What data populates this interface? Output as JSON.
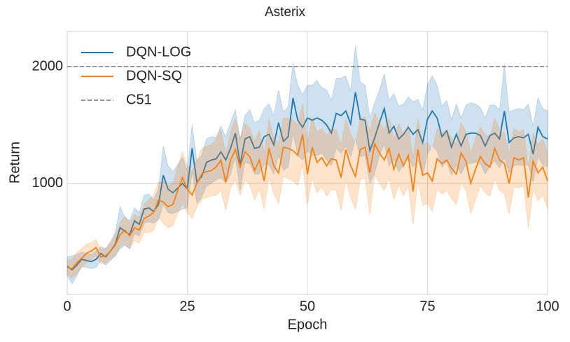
{
  "chart_data": {
    "type": "line",
    "title": "Asterix",
    "x_label": "Epoch",
    "y_label": "Return",
    "x": [
      0,
      1,
      2,
      3,
      4,
      5,
      6,
      7,
      8,
      9,
      10,
      11,
      12,
      13,
      14,
      15,
      16,
      17,
      18,
      19,
      20,
      21,
      22,
      23,
      24,
      25,
      26,
      27,
      28,
      29,
      30,
      31,
      32,
      33,
      34,
      35,
      36,
      37,
      38,
      39,
      40,
      41,
      42,
      43,
      44,
      45,
      46,
      47,
      48,
      49,
      50,
      51,
      52,
      53,
      54,
      55,
      56,
      57,
      58,
      59,
      60,
      61,
      62,
      63,
      64,
      65,
      66,
      67,
      68,
      69,
      70,
      71,
      72,
      73,
      74,
      75,
      76,
      77,
      78,
      79,
      80,
      81,
      82,
      83,
      84,
      85,
      86,
      87,
      88,
      89,
      90,
      91,
      92,
      93,
      94,
      95,
      96,
      97,
      98,
      99,
      100
    ],
    "series": [
      {
        "name": "DQN-LOG",
        "color": "#1f77b4",
        "values": [
          290,
          260,
          300,
          350,
          340,
          330,
          350,
          400,
          370,
          420,
          480,
          620,
          590,
          560,
          680,
          650,
          780,
          790,
          760,
          820,
          1070,
          950,
          920,
          960,
          1000,
          950,
          1300,
          1010,
          1060,
          1180,
          1200,
          1210,
          1270,
          1200,
          1300,
          1430,
          1160,
          1380,
          1400,
          1300,
          1310,
          1400,
          1420,
          1330,
          1520,
          1360,
          1400,
          1730,
          1540,
          1480,
          1560,
          1540,
          1560,
          1540,
          1500,
          1430,
          1600,
          1580,
          1620,
          1510,
          1780,
          1550,
          1540,
          1280,
          1390,
          1520,
          1640,
          1430,
          1490,
          1380,
          1420,
          1480,
          1420,
          1460,
          1350,
          1550,
          1620,
          1560,
          1400,
          1450,
          1310,
          1420,
          1320,
          1420,
          1430,
          1430,
          1410,
          1320,
          1410,
          1430,
          1380,
          1620,
          1350,
          1390,
          1400,
          1390,
          1420,
          1250,
          1480,
          1400,
          1380
        ],
        "std": [
          80,
          120,
          90,
          60,
          60,
          60,
          70,
          60,
          70,
          80,
          100,
          180,
          120,
          120,
          110,
          100,
          120,
          120,
          100,
          130,
          250,
          200,
          180,
          200,
          220,
          160,
          200,
          180,
          180,
          200,
          200,
          180,
          220,
          200,
          220,
          200,
          220,
          200,
          230,
          220,
          230,
          240,
          260,
          250,
          280,
          250,
          260,
          300,
          300,
          280,
          280,
          300,
          320,
          280,
          300,
          280,
          300,
          320,
          300,
          280,
          400,
          320,
          300,
          280,
          300,
          280,
          300,
          280,
          280,
          280,
          260,
          260,
          280,
          260,
          280,
          300,
          300,
          280,
          260,
          260,
          240,
          260,
          240,
          250,
          260,
          250,
          240,
          240,
          260,
          240,
          250,
          400,
          260,
          240,
          240,
          240,
          260,
          240,
          250,
          240,
          240
        ]
      },
      {
        "name": "DQN-SQ",
        "color": "#ff7f0e",
        "values": [
          280,
          270,
          320,
          360,
          400,
          420,
          450,
          370,
          380,
          420,
          470,
          560,
          600,
          550,
          620,
          600,
          700,
          720,
          750,
          860,
          840,
          800,
          820,
          940,
          1050,
          950,
          900,
          1000,
          1080,
          1100,
          1110,
          1140,
          1200,
          1010,
          1200,
          1290,
          1140,
          1270,
          1230,
          1110,
          1200,
          1020,
          1300,
          1150,
          1090,
          1310,
          1300,
          1280,
          1240,
          1420,
          1080,
          1310,
          1180,
          1220,
          1150,
          1210,
          1200,
          1050,
          1290,
          1150,
          1060,
          1290,
          1310,
          1090,
          1340,
          1260,
          1200,
          1300,
          1120,
          1250,
          1150,
          1240,
          930,
          1290,
          1070,
          1090,
          1020,
          1210,
          1170,
          1200,
          1130,
          1080,
          1260,
          1190,
          1000,
          1120,
          1230,
          1170,
          1140,
          1300,
          1200,
          1170,
          1000,
          1220,
          1200,
          1220,
          880,
          1190,
          1090,
          1140,
          1020
        ],
        "std": [
          60,
          80,
          90,
          80,
          80,
          70,
          70,
          60,
          60,
          70,
          90,
          100,
          120,
          110,
          110,
          110,
          120,
          140,
          150,
          150,
          180,
          180,
          180,
          200,
          220,
          200,
          200,
          200,
          220,
          220,
          220,
          240,
          260,
          240,
          240,
          260,
          240,
          240,
          240,
          250,
          250,
          240,
          250,
          240,
          260,
          250,
          260,
          260,
          260,
          260,
          260,
          260,
          260,
          250,
          260,
          260,
          260,
          280,
          260,
          270,
          280,
          260,
          260,
          360,
          260,
          260,
          260,
          260,
          260,
          260,
          260,
          260,
          280,
          260,
          260,
          260,
          260,
          260,
          260,
          260,
          260,
          260,
          260,
          250,
          260,
          260,
          250,
          250,
          250,
          260,
          260,
          260,
          260,
          250,
          240,
          240,
          260,
          240,
          240,
          240,
          240
        ]
      },
      {
        "name": "C51",
        "color": "#777777",
        "linestyle": "dashed",
        "value": 2000
      }
    ],
    "xlim": [
      0,
      100
    ],
    "ylim": [
      50,
      2300
    ],
    "xticks": [
      0,
      25,
      50,
      75,
      100
    ],
    "yticks": [
      1000,
      2000
    ],
    "grid": true,
    "legend": "upper left"
  }
}
